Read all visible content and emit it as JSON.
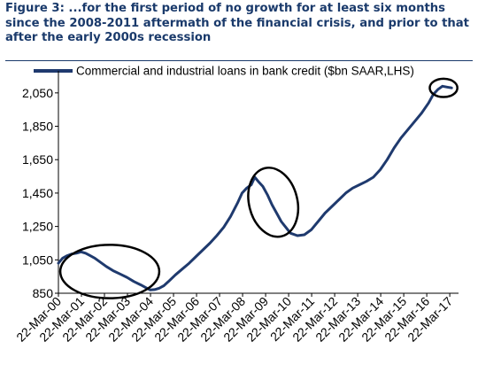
{
  "figure": {
    "title": "Figure 3: ...for the first period of no growth for at least six months since the 2008-2011 aftermath of the financial crisis, and prior to that after the early 2000s recession"
  },
  "colors": {
    "title": "#1a3a6b",
    "series": "#1f3a6e",
    "axis": "#000000",
    "annotation": "#000000"
  },
  "chart_data": {
    "type": "line",
    "title": "Figure 3: ...for the first period of no growth for at least six months since the 2008-2011 aftermath of the financial crisis, and prior to that after the early 2000s recession",
    "xlabel": "",
    "ylabel": "",
    "ylim": [
      850,
      2150
    ],
    "xlim": [
      2000.22,
      2017.6
    ],
    "yticks": [
      850,
      1050,
      1250,
      1450,
      1650,
      1850,
      2050
    ],
    "ytick_labels": [
      "850",
      "1,050",
      "1,250",
      "1,450",
      "1,650",
      "1,850",
      "2,050"
    ],
    "xticks": [
      2000.22,
      2001.22,
      2002.22,
      2003.22,
      2004.22,
      2005.22,
      2006.22,
      2007.22,
      2008.22,
      2009.22,
      2010.22,
      2011.22,
      2012.22,
      2013.22,
      2014.22,
      2015.22,
      2016.22,
      2017.22
    ],
    "xtick_labels": [
      "22-Mar-00",
      "22-Mar-01",
      "22-Mar-02",
      "22-Mar-03",
      "22-Mar-04",
      "22-Mar-05",
      "22-Mar-06",
      "22-Mar-07",
      "22-Mar-08",
      "22-Mar-09",
      "22-Mar-10",
      "22-Mar-11",
      "22-Mar-12",
      "22-Mar-13",
      "22-Mar-14",
      "22-Mar-15",
      "22-Mar-16",
      "22-Mar-17"
    ],
    "legend": {
      "position": "top-left",
      "entries": [
        "Commercial and industrial loans in bank credit ($bn SAAR,LHS)"
      ]
    },
    "grid": false,
    "series": [
      {
        "name": "Commercial and industrial loans in bank credit ($bn SAAR,LHS)",
        "x": [
          2000.22,
          2000.4,
          2000.6,
          2000.8,
          2001.0,
          2001.2,
          2001.4,
          2001.6,
          2001.8,
          2002.0,
          2002.3,
          2002.6,
          2002.9,
          2003.2,
          2003.5,
          2003.8,
          2004.0,
          2004.2,
          2004.4,
          2004.6,
          2004.8,
          2005.0,
          2005.3,
          2005.6,
          2005.9,
          2006.2,
          2006.5,
          2006.8,
          2007.1,
          2007.4,
          2007.7,
          2008.0,
          2008.2,
          2008.4,
          2008.6,
          2008.75,
          2008.9,
          2009.1,
          2009.3,
          2009.5,
          2009.7,
          2009.9,
          2010.1,
          2010.3,
          2010.6,
          2010.9,
          2011.2,
          2011.5,
          2011.8,
          2012.1,
          2012.4,
          2012.7,
          2013.0,
          2013.3,
          2013.6,
          2013.9,
          2014.2,
          2014.5,
          2014.8,
          2015.1,
          2015.4,
          2015.7,
          2016.0,
          2016.3,
          2016.5,
          2016.7,
          2016.9,
          2017.1,
          2017.3
        ],
        "values": [
          1030,
          1060,
          1075,
          1085,
          1090,
          1098,
          1090,
          1075,
          1060,
          1040,
          1010,
          985,
          965,
          945,
          920,
          900,
          885,
          870,
          872,
          880,
          895,
          920,
          960,
          995,
          1030,
          1070,
          1110,
          1150,
          1195,
          1245,
          1310,
          1390,
          1450,
          1480,
          1500,
          1545,
          1520,
          1490,
          1440,
          1380,
          1330,
          1280,
          1245,
          1210,
          1195,
          1200,
          1230,
          1280,
          1330,
          1370,
          1410,
          1450,
          1480,
          1500,
          1520,
          1545,
          1590,
          1650,
          1720,
          1780,
          1830,
          1880,
          1930,
          1990,
          2040,
          2070,
          2090,
          2085,
          2080
        ]
      }
    ],
    "annotations": [
      {
        "shape": "ellipse",
        "label": "early 2000s recession",
        "center_data": [
          2002.45,
          980
        ],
        "rx_years": 2.15,
        "ry_value": 160,
        "rotate": 0
      },
      {
        "shape": "ellipse",
        "label": "2008-2011 aftermath",
        "center_data": [
          2009.55,
          1395
        ],
        "rx_years": 1.05,
        "ry_value": 210,
        "rotate": -14
      },
      {
        "shape": "ellipse",
        "label": "recent period of no growth",
        "center_data": [
          2016.95,
          2080
        ],
        "rx_years": 0.6,
        "ry_value": 55,
        "rotate": 0
      }
    ]
  }
}
